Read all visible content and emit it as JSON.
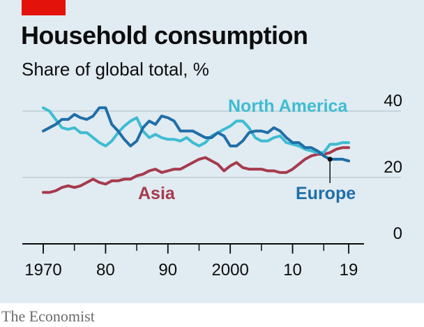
{
  "header": {
    "title": "Household consumption",
    "subtitle": "Share of global total, %"
  },
  "footer": {
    "source": "The Economist"
  },
  "colors": {
    "background": "#e1ebf2",
    "north_america": "#3ebcd2",
    "europe": "#1f6ea8",
    "asia": "#a63a4c",
    "brand_red": "#e3120b",
    "grid": "#b7c6cf"
  },
  "chart_data": {
    "type": "line",
    "title": "Household consumption",
    "subtitle": "Share of global total, %",
    "xlabel": "",
    "ylabel": "",
    "xlim": [
      1969,
      2024
    ],
    "ylim": [
      0,
      40
    ],
    "y_ticks": [
      0,
      20,
      40
    ],
    "x_ticks": [
      {
        "value": 1970,
        "label": "1970"
      },
      {
        "value": 1980,
        "label": "80"
      },
      {
        "value": 1990,
        "label": "90"
      },
      {
        "value": 2000,
        "label": "2000"
      },
      {
        "value": 2010,
        "label": "10"
      },
      {
        "value": 2019,
        "label": "19"
      }
    ],
    "grid": "horizontal",
    "annotations": {
      "north_america": "North America",
      "europe": "Europe",
      "asia": "Asia"
    },
    "x": [
      1970,
      1971,
      1972,
      1973,
      1974,
      1975,
      1976,
      1977,
      1978,
      1979,
      1980,
      1981,
      1982,
      1983,
      1984,
      1985,
      1986,
      1987,
      1988,
      1989,
      1990,
      1991,
      1992,
      1993,
      1994,
      1995,
      1996,
      1997,
      1998,
      1999,
      2000,
      2001,
      2002,
      2003,
      2004,
      2005,
      2006,
      2007,
      2008,
      2009,
      2010,
      2011,
      2012,
      2013,
      2014,
      2015,
      2016,
      2017,
      2018,
      2019
    ],
    "series": [
      {
        "name": "North America",
        "color_key": "north_america",
        "values": [
          41,
          40,
          37.5,
          35,
          34.5,
          35,
          33.5,
          33.5,
          32,
          30.5,
          29.5,
          31,
          33.5,
          35.5,
          37,
          38,
          34,
          32,
          33,
          32,
          31.5,
          31.5,
          31,
          32,
          30.5,
          29.5,
          30.5,
          32.5,
          33.5,
          34.5,
          35.5,
          37,
          37,
          35,
          32,
          31,
          31,
          32,
          32.5,
          30.5,
          30,
          29.5,
          28.5,
          28,
          27.5,
          27.5,
          30,
          30,
          30.5,
          30.5
        ]
      },
      {
        "name": "Europe",
        "color_key": "europe",
        "values": [
          34,
          35,
          36,
          37.5,
          37.5,
          39,
          38,
          37.5,
          38.5,
          41,
          41,
          36,
          34,
          31.5,
          29.5,
          31,
          35,
          37,
          36,
          38.5,
          38,
          37,
          34,
          34,
          34,
          33,
          32,
          32,
          33.5,
          32.5,
          29.5,
          29.5,
          31,
          33.5,
          34,
          34,
          33.5,
          35,
          34,
          32,
          30.5,
          30.5,
          29,
          29,
          28,
          26.5,
          25.5,
          25.5,
          25.5,
          25
        ]
      },
      {
        "name": "Asia",
        "color_key": "asia",
        "values": [
          15.5,
          15.5,
          16,
          17,
          17.5,
          17,
          17.5,
          18.5,
          19.5,
          18.5,
          18,
          19,
          19,
          19.5,
          19.5,
          20.5,
          21,
          22,
          22.5,
          21.5,
          22,
          22.5,
          22.5,
          23.5,
          24.5,
          25.5,
          26,
          25,
          24,
          22,
          23.5,
          24.5,
          23,
          22.5,
          22.5,
          22.5,
          22,
          22,
          21.5,
          21.5,
          22.5,
          24,
          25.5,
          26.5,
          27,
          27,
          27.5,
          28.5,
          29,
          29
        ]
      }
    ]
  }
}
